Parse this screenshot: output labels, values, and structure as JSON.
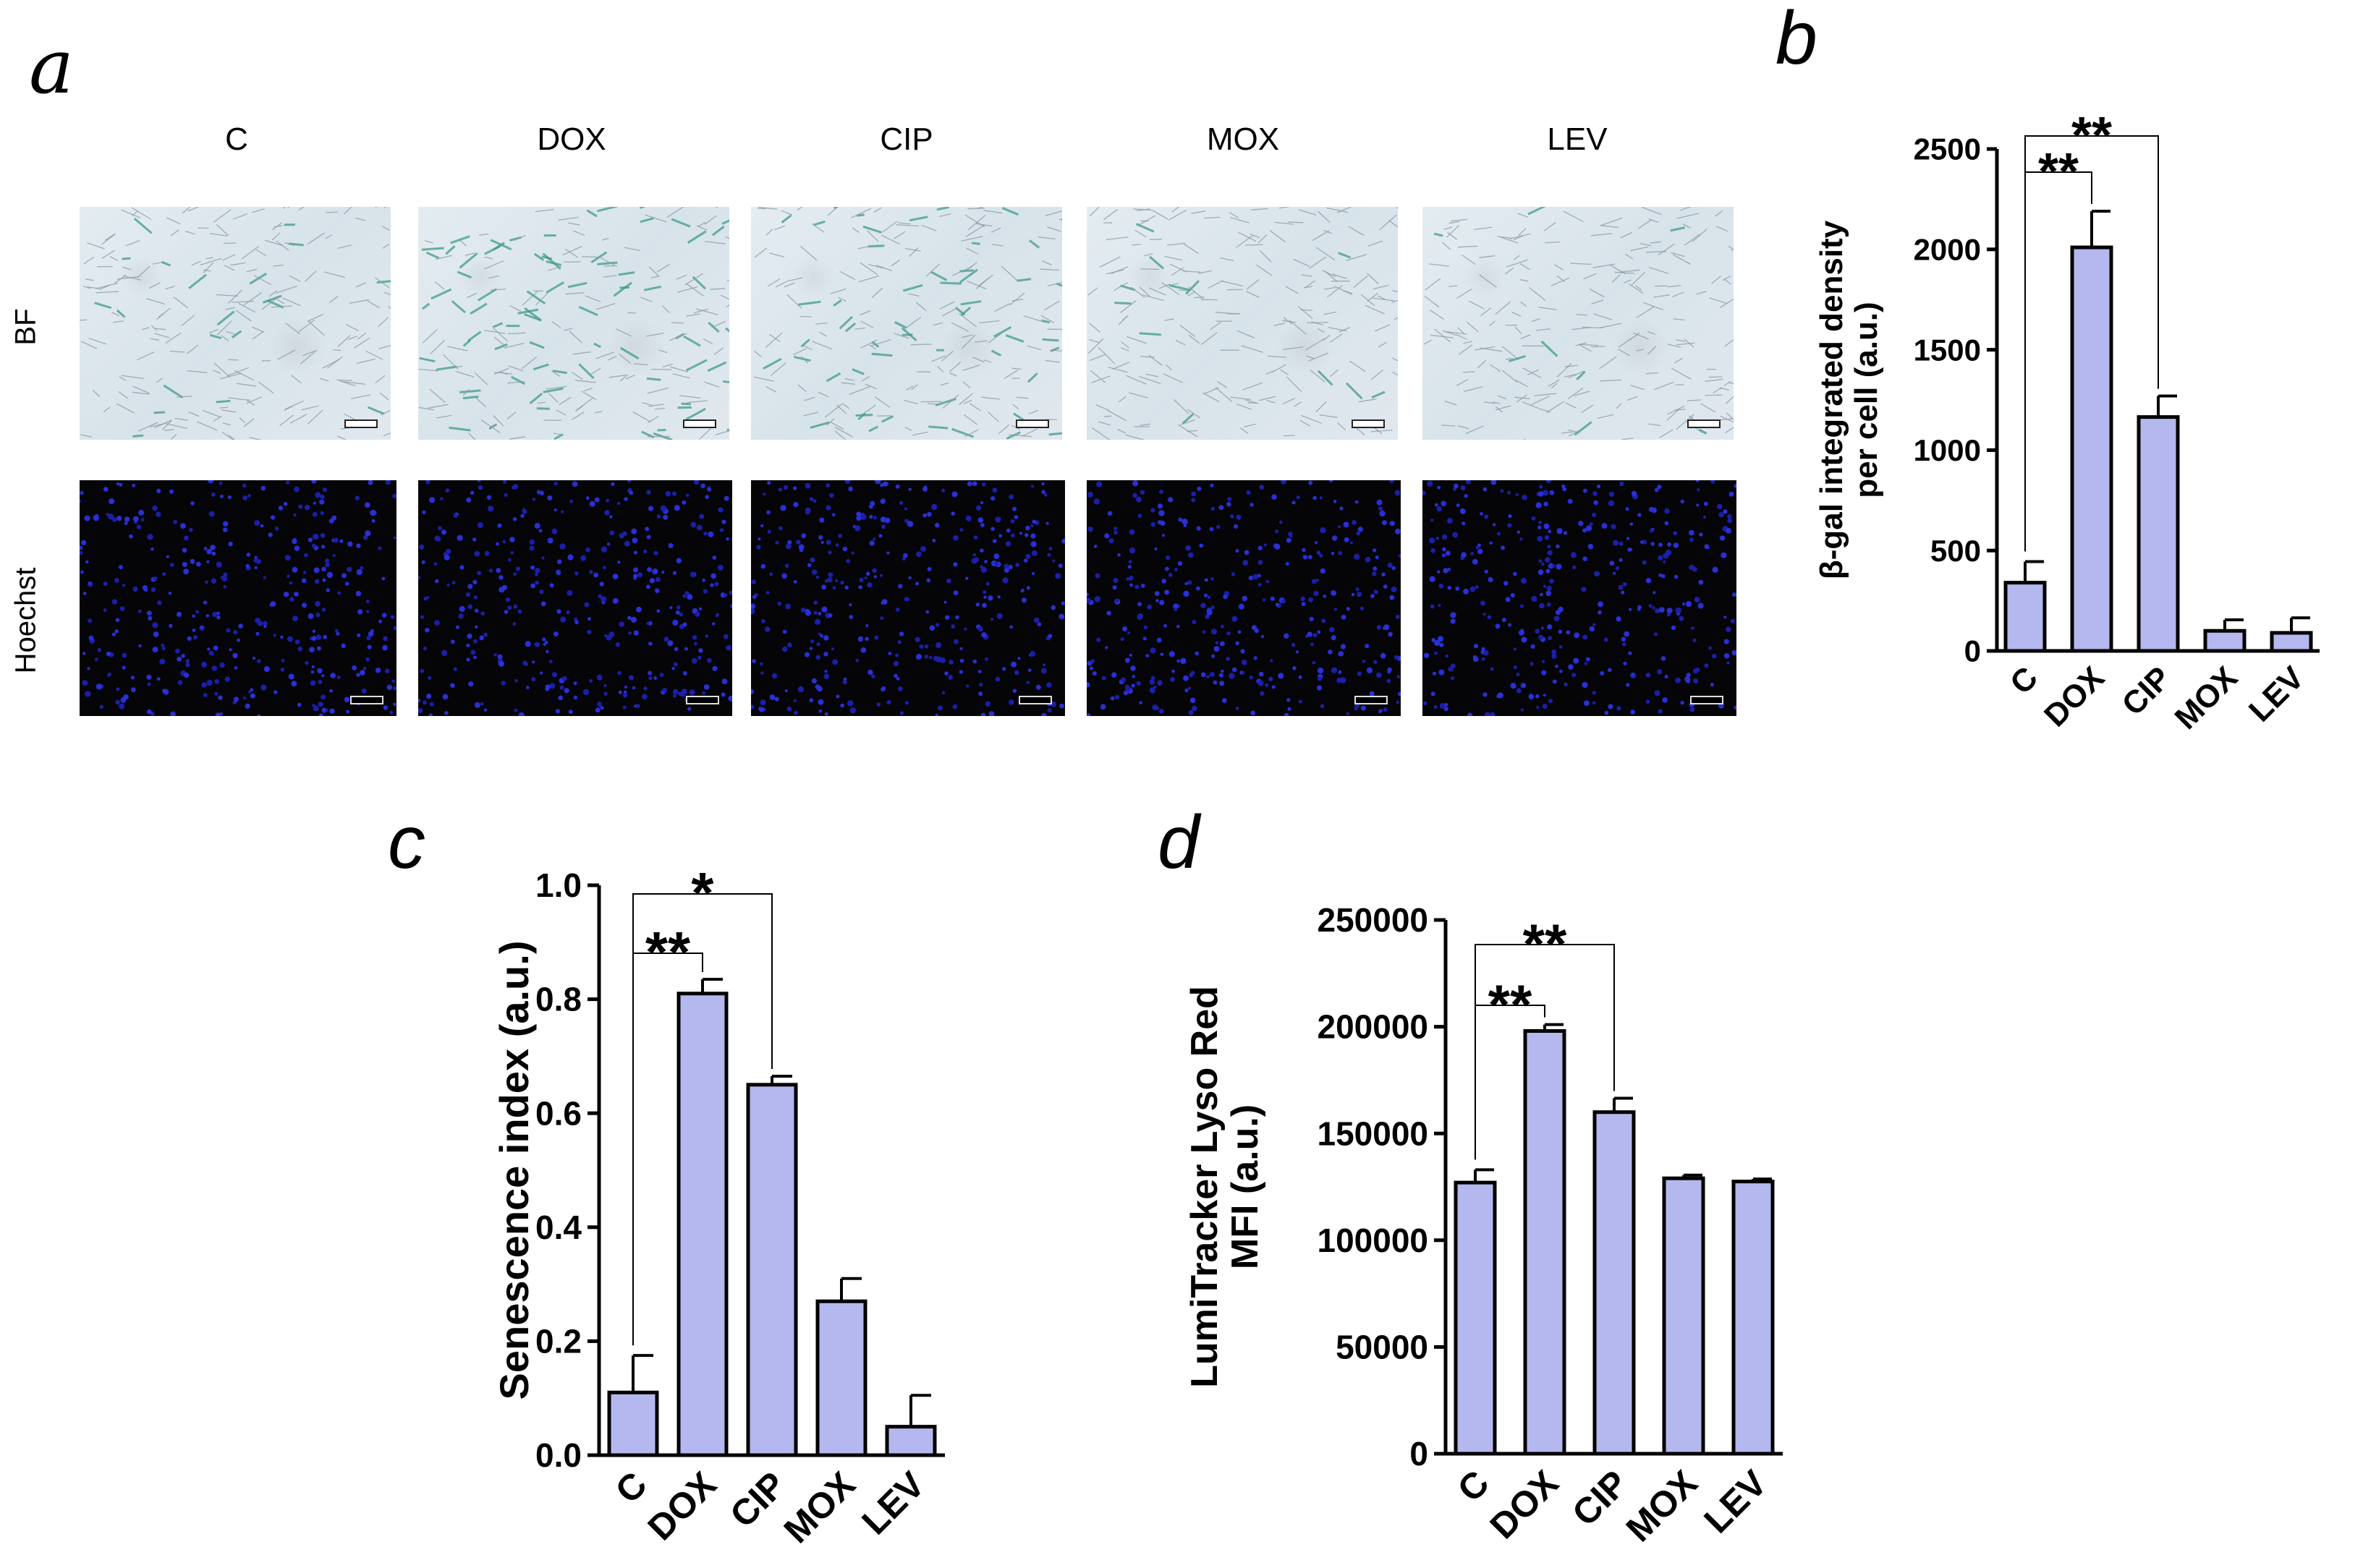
{
  "panel_a": {
    "letter": "a",
    "columns": [
      "C",
      "DOX",
      "CIP",
      "MOX",
      "LEV"
    ],
    "rows": [
      "BF",
      "Hoechst"
    ]
  },
  "chart_data": [
    {
      "panel": "b",
      "type": "bar",
      "categories": [
        "C",
        "DOX",
        "CIP",
        "MOX",
        "LEV"
      ],
      "values": [
        340,
        2010,
        1165,
        100,
        90
      ],
      "errors": [
        105,
        180,
        105,
        55,
        75
      ],
      "ylabel_lines": [
        "β-gal integrated density",
        "per cell (a.u.)"
      ],
      "ylim": [
        0,
        2500
      ],
      "yticks": [
        0,
        500,
        1000,
        1500,
        2000,
        2500
      ],
      "ytick_labels": [
        "0",
        "500",
        "1000",
        "1500",
        "2000",
        "2500"
      ],
      "significance": [
        {
          "from": "C",
          "to": "DOX",
          "label": "**"
        },
        {
          "from": "C",
          "to": "CIP",
          "label": "**"
        }
      ],
      "bar_color": "#b4b8ee"
    },
    {
      "panel": "c",
      "type": "bar",
      "categories": [
        "C",
        "DOX",
        "CIP",
        "MOX",
        "LEV"
      ],
      "values": [
        0.11,
        0.81,
        0.65,
        0.27,
        0.05
      ],
      "errors": [
        0.065,
        0.025,
        0.015,
        0.04,
        0.055
      ],
      "ylabel_lines": [
        "Senescence index (a.u.)"
      ],
      "ylim": [
        0,
        1.0
      ],
      "yticks": [
        0,
        0.2,
        0.4,
        0.6,
        0.8,
        1.0
      ],
      "ytick_labels": [
        "0.0",
        "0.2",
        "0.4",
        "0.6",
        "0.8",
        "1.0"
      ],
      "significance": [
        {
          "from": "C",
          "to": "DOX",
          "label": "**"
        },
        {
          "from": "C",
          "to": "CIP",
          "label": "*"
        }
      ],
      "bar_color": "#b4b8ee"
    },
    {
      "panel": "d",
      "type": "bar",
      "categories": [
        "C",
        "DOX",
        "CIP",
        "MOX",
        "LEV"
      ],
      "values": [
        127000,
        198000,
        160000,
        129000,
        127500
      ],
      "errors": [
        6000,
        3000,
        6500,
        1500,
        1200
      ],
      "ylabel_lines": [
        "LumiTracker Lyso Red",
        "MFI (a.u.)"
      ],
      "ylim": [
        0,
        250000
      ],
      "yticks": [
        0,
        50000,
        100000,
        150000,
        200000,
        250000
      ],
      "ytick_labels": [
        "0",
        "50000",
        "100000",
        "150000",
        "200000",
        "250000"
      ],
      "significance": [
        {
          "from": "C",
          "to": "DOX",
          "label": "**"
        },
        {
          "from": "C",
          "to": "CIP",
          "label": "**"
        }
      ],
      "bar_color": "#b4b8ee"
    }
  ]
}
